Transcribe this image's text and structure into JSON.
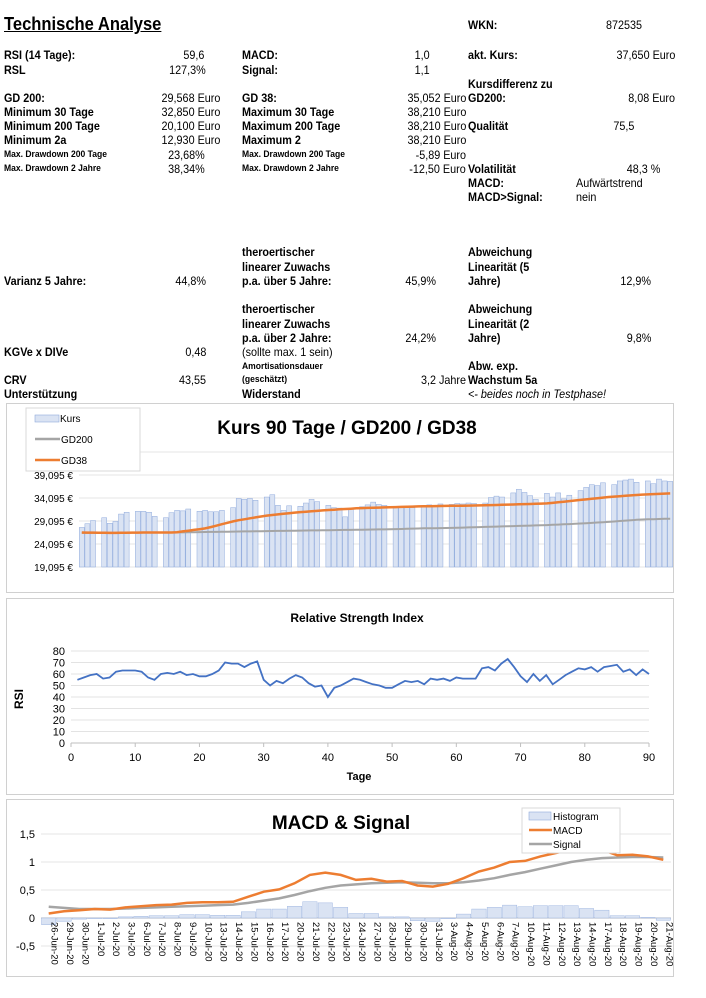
{
  "header": {
    "title": "Technische Analyse",
    "wkn_label": "WKN:",
    "wkn_value": "872535"
  },
  "col1": [
    {
      "label": "RSI (14 Tage):",
      "value": "59,6"
    },
    {
      "label": "RSL",
      "value": "127,3%"
    },
    {
      "label": "GD 200:",
      "value": "29,568 Euro"
    },
    {
      "label": "Minimum 30 Tage",
      "value": "32,850 Euro"
    },
    {
      "label": "Minimum 200 Tage",
      "value": "20,100 Euro"
    },
    {
      "label": "Minimum 2a",
      "value": "12,930 Euro"
    },
    {
      "label": "Max. Drawdown 200 Tage",
      "value": "23,68%"
    },
    {
      "label": "Max. Drawdown 2 Jahre",
      "value": "38,34%"
    }
  ],
  "col2": [
    {
      "label": "MACD:",
      "value": "1,0"
    },
    {
      "label": "Signal:",
      "value": "1,1"
    },
    {
      "label": "GD 38:",
      "value": "35,052 Euro"
    },
    {
      "label": "Maximum 30 Tage",
      "value": "38,210 Euro"
    },
    {
      "label": "Maximum 200 Tage",
      "value": "38,210 Euro"
    },
    {
      "label": "Maximum 2",
      "value": "38,210 Euro"
    },
    {
      "label": "Max. Drawdown 200 Tage",
      "value": "-5,89 Euro"
    },
    {
      "label": "Max. Drawdown 2 Jahre",
      "value": "-12,50 Euro"
    }
  ],
  "col3": [
    {
      "label": "akt. Kurs:",
      "value": "37,650 Euro"
    },
    {
      "label": "Kursdifferenz zu",
      "label2": "GD200:",
      "value": "8,08 Euro"
    },
    {
      "label": "Qualität",
      "value": "75,5"
    },
    {
      "label": "Volatilität",
      "value": "48,3 %"
    },
    {
      "label": "MACD:",
      "value": "Aufwärtstrend"
    },
    {
      "label": "MACD>Signal:",
      "value": "nein"
    }
  ],
  "lower": {
    "varianz_label": "Varianz 5 Jahre:",
    "varianz_value": "44,8%",
    "kgve_label": "KGVe x DIVe",
    "kgve_value": "0,48",
    "crv_label": "CRV",
    "crv_value": "43,55",
    "unterstuetzung_label": "Unterstützung",
    "zuwachs5_lines": [
      "theroertischer",
      "linearer Zuwachs",
      "p.a. über 5 Jahre:"
    ],
    "zuwachs5_value": "45,9%",
    "zuwachs2_lines": [
      "theroertischer",
      "linearer Zuwachs",
      "p.a. über 2 Jahre:"
    ],
    "zuwachs2_value": "24,2%",
    "zuwachs2_note": "(sollte max. 1 sein)",
    "amort_lines": [
      "Amortisationsdauer",
      "(geschätzt)"
    ],
    "amort_value": "3,2 Jahre",
    "widerstand_label": "Widerstand",
    "abw5_lines": [
      "Abweichung",
      "Linearität (5",
      "Jahre)"
    ],
    "abw5_value": "12,9%",
    "abw2_lines": [
      "Abweichung",
      "Linearität (2",
      "Jahre)"
    ],
    "abw2_value": "9,8%",
    "abwexp_lines": [
      "Abw. exp.",
      "Wachstum 5a"
    ],
    "testphase_note": "<- beides noch in Testphase!"
  },
  "chart_data": [
    {
      "type": "bar",
      "title": "Kurs 90 Tage / GD200 / GD38",
      "legend": [
        "Kurs",
        "GD200",
        "GD38"
      ],
      "legend_position": "top-left",
      "ylim": [
        19.095,
        44.095
      ],
      "yticks": [
        "19,095 €",
        "24,095 €",
        "29,095 €",
        "34,095 €",
        "39,095 €"
      ],
      "ytick_values": [
        19.095,
        24.095,
        29.095,
        34.095,
        39.095
      ],
      "grid": true,
      "colors": {
        "Kurs": "#dae3f3",
        "Kurs_border": "#8faadc",
        "GD200": "#a5a5a5",
        "GD38": "#ed7d31"
      },
      "kurs_weeks": [
        [
          27.7,
          28.5,
          29.2
        ],
        [
          29.8,
          28.6,
          29.0,
          30.6,
          31.0
        ],
        [
          31.2,
          31.2,
          31.0,
          30.1
        ],
        [
          29.8,
          30.9,
          31.4,
          31.3,
          31.7
        ],
        [
          31.2,
          31.4,
          31.1,
          31.1,
          31.4
        ],
        [
          32.0,
          34.0,
          33.8,
          34.0,
          33.6
        ],
        [
          34.3,
          34.8,
          32.5,
          31.4,
          32.4
        ],
        [
          32.3,
          33.0,
          33.8,
          33.3
        ],
        [
          32.5,
          32.0,
          31.9,
          30.0,
          31.8
        ],
        [
          32.2,
          32.6,
          33.2,
          32.7,
          32.5
        ],
        [
          32.0,
          32.0,
          32.0,
          32.0
        ],
        [
          32.4,
          32.6,
          32.4,
          32.8
        ],
        [
          32.7,
          32.9,
          32.8,
          33.0,
          32.9
        ],
        [
          33.0,
          34.2,
          34.5,
          34.3
        ],
        [
          35.2,
          36.0,
          35.3,
          34.6,
          33.8
        ],
        [
          35.1,
          34.3,
          35.2,
          33.9,
          34.7
        ],
        [
          35.7,
          36.4,
          37.0,
          36.8,
          37.4
        ],
        [
          37.0,
          37.8,
          38.0,
          38.2,
          37.5
        ],
        [
          37.8,
          37.2,
          38.2,
          37.8,
          37.7
        ]
      ],
      "gd200_weekly": [
        26.5,
        26.5,
        26.6,
        26.6,
        26.7,
        26.8,
        26.9,
        27.0,
        27.1,
        27.2,
        27.3,
        27.5,
        27.6,
        27.8,
        28.0,
        28.2,
        28.5,
        28.9,
        29.4,
        29.6
      ],
      "gd38_weekly": [
        26.6,
        26.5,
        26.6,
        26.6,
        27.5,
        29.2,
        30.3,
        31.0,
        31.5,
        31.9,
        32.1,
        32.3,
        32.4,
        32.5,
        32.7,
        32.9,
        33.6,
        34.3,
        34.8,
        35.1
      ]
    },
    {
      "type": "line",
      "title": "Relative Strength Index",
      "xlabel": "Tage",
      "ylabel": "RSI",
      "xlim": [
        0,
        90
      ],
      "ylim": [
        0,
        80
      ],
      "xticks": [
        "0",
        "10",
        "20",
        "30",
        "40",
        "50",
        "60",
        "70",
        "80",
        "90"
      ],
      "yticks": [
        "0",
        "10",
        "20",
        "30",
        "40",
        "50",
        "60",
        "70",
        "80"
      ],
      "grid": true,
      "color": "#4472c4",
      "x_start": 1,
      "values": [
        55,
        57,
        59,
        60,
        56,
        57,
        62,
        63,
        63,
        63,
        62,
        57,
        55,
        60,
        61,
        60,
        62,
        59,
        60,
        58,
        58,
        60,
        63,
        70,
        69,
        69,
        66,
        69,
        71,
        55,
        50,
        54,
        52,
        56,
        59,
        57,
        52,
        49,
        50,
        40,
        48,
        50,
        53,
        56,
        55,
        53,
        51,
        50,
        48,
        48,
        51,
        54,
        53,
        54,
        51,
        56,
        55,
        56,
        54,
        57,
        56,
        56,
        56,
        65,
        66,
        63,
        69,
        73,
        66,
        58,
        53,
        60,
        54,
        59,
        51,
        55,
        59,
        62,
        65,
        64,
        66,
        62,
        66,
        67,
        68,
        62,
        64,
        59,
        64,
        60
      ]
    },
    {
      "type": "bar+line",
      "title": "MACD & Signal",
      "legend": [
        "Histogram",
        "MACD",
        "Signal"
      ],
      "legend_position": "top-right",
      "ylim": [
        -0.5,
        1.5
      ],
      "yticks": [
        "-0,5",
        "0",
        "0,5",
        "1",
        "1,5"
      ],
      "ytick_values": [
        -0.5,
        0,
        0.5,
        1,
        1.5
      ],
      "grid": true,
      "colors": {
        "Histogram": "#dae3f3",
        "MACD": "#ed7d31",
        "Signal": "#a5a5a5"
      },
      "categories": [
        "26-Jun-20",
        "29-Jun-20",
        "30-Jun-20",
        "1-Jul-20",
        "2-Jul-20",
        "3-Jul-20",
        "6-Jul-20",
        "7-Jul-20",
        "8-Jul-20",
        "9-Jul-20",
        "10-Jul-20",
        "13-Jul-20",
        "14-Jul-20",
        "15-Jul-20",
        "16-Jul-20",
        "17-Jul-20",
        "20-Jul-20",
        "21-Jul-20",
        "22-Jul-20",
        "23-Jul-20",
        "24-Jul-20",
        "27-Jul-20",
        "28-Jul-20",
        "29-Jul-20",
        "30-Jul-20",
        "31-Jul-20",
        "3-Aug-20",
        "4-Aug-20",
        "5-Aug-20",
        "6-Aug-20",
        "7-Aug-20",
        "10-Aug-20",
        "11-Aug-20",
        "12-Aug-20",
        "13-Aug-20",
        "14-Aug-20",
        "17-Aug-20",
        "18-Aug-20",
        "19-Aug-20",
        "20-Aug-20",
        "21-Aug-20"
      ],
      "series": [
        {
          "name": "Histogram",
          "values": [
            -0.12,
            -0.06,
            -0.02,
            0,
            -0.01,
            0.02,
            0.03,
            0.04,
            0.04,
            0.06,
            0.06,
            0.05,
            0.05,
            0.11,
            0.16,
            0.16,
            0.21,
            0.29,
            0.27,
            0.19,
            0.08,
            0.08,
            0.02,
            0.02,
            -0.05,
            -0.06,
            -0.01,
            0.07,
            0.16,
            0.19,
            0.23,
            0.2,
            0.22,
            0.22,
            0.22,
            0.17,
            0.14,
            0.04,
            0.04,
            0.01,
            -0.04
          ]
        },
        {
          "name": "MACD",
          "values": [
            0.08,
            0.12,
            0.14,
            0.16,
            0.15,
            0.19,
            0.21,
            0.23,
            0.24,
            0.27,
            0.28,
            0.28,
            0.29,
            0.38,
            0.47,
            0.51,
            0.62,
            0.77,
            0.81,
            0.77,
            0.68,
            0.7,
            0.65,
            0.66,
            0.58,
            0.56,
            0.61,
            0.71,
            0.83,
            0.9,
            1.0,
            1.02,
            1.1,
            1.16,
            1.22,
            1.24,
            1.22,
            1.12,
            1.13,
            1.1,
            1.04
          ]
        },
        {
          "name": "Signal",
          "values": [
            0.2,
            0.18,
            0.16,
            0.16,
            0.16,
            0.17,
            0.18,
            0.19,
            0.2,
            0.21,
            0.22,
            0.23,
            0.24,
            0.27,
            0.31,
            0.35,
            0.41,
            0.48,
            0.54,
            0.58,
            0.6,
            0.62,
            0.63,
            0.64,
            0.63,
            0.62,
            0.62,
            0.64,
            0.67,
            0.71,
            0.77,
            0.82,
            0.88,
            0.94,
            1.0,
            1.04,
            1.07,
            1.08,
            1.09,
            1.09,
            1.08
          ]
        }
      ]
    }
  ]
}
